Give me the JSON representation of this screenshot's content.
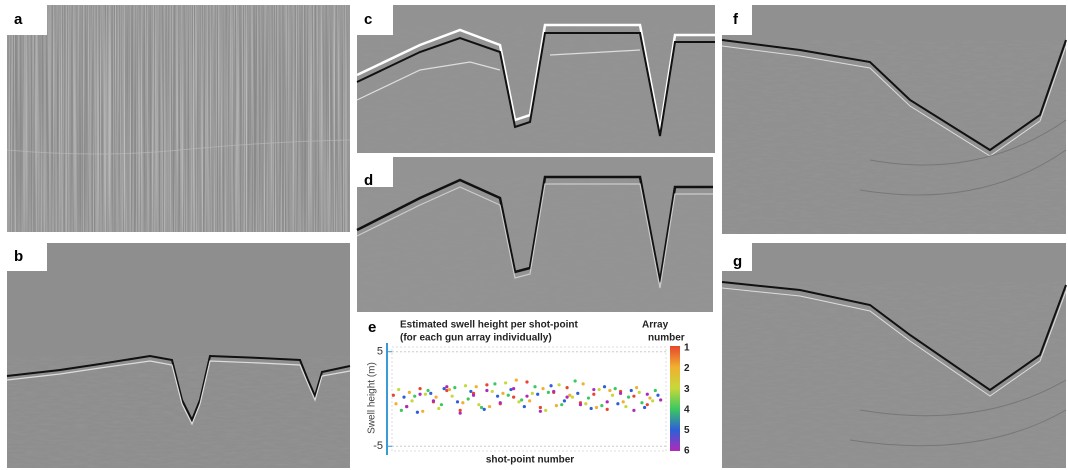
{
  "panels": [
    "a",
    "b",
    "c",
    "d",
    "e",
    "f",
    "g"
  ],
  "chart_data": {
    "type": "scatter",
    "title": [
      "Estimated swell height per shot-point",
      "(for each gun array individually)"
    ],
    "legend_title": [
      "Array",
      "number"
    ],
    "y_label": "Swell height (m)",
    "x_label": "shot-point number",
    "ylim": [
      -5.5,
      5.5
    ],
    "yticks": [
      5,
      -5
    ],
    "xlim": [
      0,
      205
    ],
    "grid": true,
    "series": [
      {
        "name": "1",
        "color": "#e8452c",
        "x": [
          1,
          11,
          21,
          31,
          41,
          51,
          61,
          71,
          81,
          91,
          101,
          111,
          121,
          131,
          141,
          151,
          161,
          171,
          181,
          191
        ],
        "values": [
          0.4,
          -0.8,
          1.1,
          -0.3,
          0.9,
          -1.2,
          0.6,
          1.5,
          -0.5,
          0.2,
          1.8,
          -0.9,
          0.7,
          1.2,
          -0.4,
          0.5,
          -1.1,
          0.8,
          0.3,
          -0.6
        ]
      },
      {
        "name": "2",
        "color": "#f0b030",
        "x": [
          3,
          13,
          23,
          33,
          43,
          53,
          63,
          73,
          83,
          93,
          103,
          113,
          123,
          133,
          143,
          153,
          163,
          173,
          183,
          193
        ],
        "values": [
          -0.5,
          0.7,
          -1.3,
          0.2,
          1.0,
          -0.4,
          1.3,
          -0.8,
          0.6,
          2.0,
          -0.2,
          1.1,
          -0.7,
          0.4,
          1.6,
          -0.9,
          0.9,
          -0.3,
          1.2,
          0.1
        ]
      },
      {
        "name": "3",
        "color": "#c8d83a",
        "x": [
          5,
          15,
          25,
          35,
          45,
          55,
          65,
          75,
          85,
          95,
          105,
          115,
          125,
          135,
          145,
          155,
          165,
          175,
          185,
          195
        ],
        "values": [
          1.0,
          -0.2,
          0.5,
          -1.0,
          0.3,
          1.4,
          -0.6,
          0.8,
          1.7,
          -0.3,
          0.6,
          -1.2,
          1.5,
          0.2,
          -0.5,
          1.0,
          0.4,
          -0.8,
          0.7,
          -0.2
        ]
      },
      {
        "name": "4",
        "color": "#3cc860",
        "x": [
          7,
          17,
          27,
          37,
          47,
          57,
          67,
          77,
          87,
          97,
          107,
          117,
          127,
          137,
          147,
          157,
          167,
          177,
          187,
          197
        ],
        "values": [
          -1.2,
          0.3,
          0.9,
          -0.6,
          1.2,
          0.0,
          -0.9,
          1.6,
          0.4,
          -0.1,
          1.3,
          0.7,
          -0.6,
          1.9,
          0.1,
          -0.7,
          1.1,
          0.2,
          -0.4,
          0.9
        ]
      },
      {
        "name": "5",
        "color": "#2e5fd8",
        "x": [
          9,
          19,
          29,
          39,
          49,
          59,
          69,
          79,
          89,
          99,
          109,
          119,
          129,
          139,
          149,
          159,
          169,
          179,
          189,
          199
        ],
        "values": [
          0.2,
          -1.4,
          0.6,
          1.1,
          -0.3,
          0.8,
          -1.1,
          0.3,
          1.0,
          -0.8,
          0.5,
          1.4,
          -0.2,
          0.6,
          -1.0,
          1.3,
          -0.5,
          0.9,
          -0.9,
          0.4
        ]
      },
      {
        "name": "6",
        "color": "#b02ab8",
        "x": [
          11,
          21,
          31,
          41,
          51,
          61,
          71,
          81,
          91,
          101,
          111,
          121,
          131,
          141,
          151,
          161,
          171,
          181,
          191,
          201
        ],
        "values": [
          -0.8,
          0.5,
          -0.2,
          1.3,
          -1.5,
          0.4,
          0.9,
          -0.4,
          1.1,
          0.3,
          -1.3,
          0.8,
          0.2,
          -0.6,
          1.0,
          -0.3,
          0.6,
          -1.2,
          0.5,
          -0.1
        ]
      }
    ]
  }
}
